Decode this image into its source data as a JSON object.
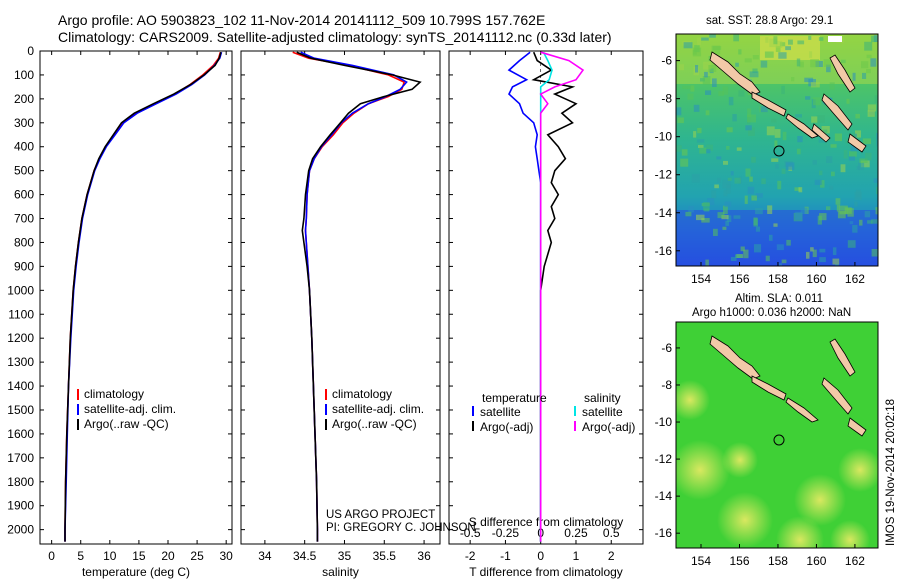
{
  "header": {
    "title_line1": "Argo profile: AO 5903823_102 11-Nov-2014 20141112_509 10.799S 157.762E",
    "title_line2": "Climatology: CARS2009. Satellite-adjusted climatology: synTS_20141112.nc (0.33d later)"
  },
  "colors": {
    "climatology": "#ff0000",
    "satellite": "#0000ff",
    "argo": "#000000",
    "sal_satellite": "#00e5e5",
    "sal_argo": "#ff00ff"
  },
  "depth_axis": {
    "ticks": [
      "0",
      "100",
      "200",
      "300",
      "400",
      "500",
      "600",
      "700",
      "800",
      "900",
      "1000",
      "1100",
      "1200",
      "1300",
      "1400",
      "1500",
      "1600",
      "1700",
      "1800",
      "1900",
      "2000"
    ],
    "max": 2060
  },
  "chart_data": [
    {
      "type": "line",
      "xlabel": "temperature (deg C)",
      "xlim": [
        -2,
        31
      ],
      "xticks": [
        "0",
        "5",
        "10",
        "15",
        "20",
        "25",
        "30"
      ],
      "legend": [
        "climatology",
        "satellite-adj. clim.",
        "Argo(..raw -QC)"
      ],
      "y_depth": [
        5,
        30,
        60,
        100,
        140,
        180,
        220,
        260,
        300,
        350,
        400,
        450,
        500,
        600,
        700,
        800,
        900,
        1000,
        1200,
        1400,
        1600,
        1800,
        2000,
        2050
      ],
      "series": [
        {
          "name": "climatology",
          "values": [
            29.0,
            28.7,
            27.8,
            26.0,
            23.8,
            21.2,
            17.8,
            14.5,
            12.3,
            10.8,
            9.3,
            8.2,
            7.3,
            6.1,
            5.2,
            4.6,
            4.1,
            3.7,
            3.2,
            2.9,
            2.6,
            2.4,
            2.3,
            2.3
          ]
        },
        {
          "name": "satellite-adj. clim.",
          "values": [
            29.2,
            28.9,
            28.0,
            26.3,
            24.1,
            21.4,
            18.0,
            14.7,
            12.4,
            10.9,
            9.4,
            8.3,
            7.4,
            6.2,
            5.3,
            4.7,
            4.2,
            3.8,
            3.3,
            2.9,
            2.7,
            2.5,
            2.3,
            2.3
          ]
        },
        {
          "name": "Argo(..raw -QC)",
          "values": [
            29.1,
            28.8,
            28.1,
            26.2,
            23.9,
            21.0,
            17.5,
            14.2,
            12.0,
            10.6,
            9.2,
            8.1,
            7.3,
            6.1,
            5.2,
            4.6,
            4.1,
            3.7,
            3.2,
            2.9,
            2.6,
            2.4,
            2.3,
            2.3
          ]
        }
      ]
    },
    {
      "type": "line",
      "xlabel": "salinity",
      "xlim": [
        33.7,
        36.2
      ],
      "xticks": [
        "34",
        "34.5",
        "35",
        "35.5",
        "36"
      ],
      "legend": [
        "climatology",
        "satellite-adj. clim.",
        "Argo(..raw -QC)"
      ],
      "y_depth": [
        5,
        30,
        60,
        100,
        130,
        160,
        190,
        220,
        260,
        300,
        350,
        400,
        450,
        500,
        600,
        700,
        750,
        800,
        900,
        1000,
        1200,
        1400,
        1600,
        1800,
        2000,
        2050
      ],
      "series": [
        {
          "name": "climatology",
          "values": [
            34.35,
            34.55,
            35.05,
            35.55,
            35.75,
            35.72,
            35.55,
            35.3,
            35.12,
            34.98,
            34.86,
            34.72,
            34.62,
            34.56,
            34.53,
            34.52,
            34.51,
            34.52,
            34.54,
            34.56,
            34.59,
            34.61,
            34.63,
            34.65,
            34.66,
            34.66
          ]
        },
        {
          "name": "satellite-adj. clim.",
          "values": [
            34.45,
            34.62,
            35.1,
            35.62,
            35.78,
            35.7,
            35.52,
            35.3,
            35.1,
            34.96,
            34.84,
            34.71,
            34.62,
            34.56,
            34.53,
            34.52,
            34.51,
            34.52,
            34.54,
            34.56,
            34.59,
            34.61,
            34.63,
            34.65,
            34.66,
            34.66
          ]
        },
        {
          "name": "Argo(..raw -QC)",
          "values": [
            34.4,
            34.58,
            35.0,
            35.6,
            35.95,
            35.85,
            35.5,
            35.2,
            35.05,
            34.95,
            34.82,
            34.7,
            34.6,
            34.55,
            34.51,
            34.49,
            34.47,
            34.49,
            34.53,
            34.56,
            34.59,
            34.61,
            34.63,
            34.65,
            34.66,
            34.66
          ]
        }
      ]
    },
    {
      "type": "line",
      "xlabel": "T difference from climatology",
      "xlabel2": "S difference from climatology",
      "xlim": [
        -2.6,
        2.9
      ],
      "xticks": [
        "-2",
        "-1",
        "0",
        "1",
        "2"
      ],
      "xticks_s": [
        "-0.5",
        "-0.25",
        "0",
        "0.25",
        "0.5"
      ],
      "legend_t_title": "temperature",
      "legend_s_title": "salinity",
      "legend_t": [
        "satellite",
        "Argo(-adj)"
      ],
      "legend_s": [
        "satellite",
        "Argo(-adj)"
      ],
      "y_depth": [
        5,
        40,
        80,
        120,
        150,
        180,
        220,
        260,
        300,
        350,
        400,
        450,
        500,
        550,
        600,
        650,
        700,
        750,
        800,
        900,
        1000,
        1200,
        1400,
        1600,
        1800,
        2000,
        2050
      ],
      "series": [
        {
          "name": "T satellite",
          "values": [
            -0.3,
            -0.6,
            -0.9,
            -0.4,
            -0.8,
            -0.9,
            -0.6,
            -0.5,
            -0.2,
            -0.1,
            -0.15,
            -0.1,
            -0.05,
            0.0,
            0.0,
            0.0,
            0.0,
            0.0,
            0.0,
            0.0,
            0.0,
            0.0,
            0.0,
            0.0,
            0.0,
            0.0,
            0.0
          ]
        },
        {
          "name": "T Argo(-adj)",
          "values": [
            -0.2,
            -0.1,
            0.3,
            -0.2,
            0.9,
            0.4,
            1.0,
            0.6,
            0.9,
            0.2,
            0.5,
            0.7,
            0.4,
            0.3,
            0.5,
            0.3,
            0.4,
            0.2,
            0.3,
            0.1,
            0.0,
            0.0,
            0.0,
            0.0,
            0.0,
            0.0,
            0.0
          ]
        },
        {
          "name": "S satellite",
          "values": [
            0.02,
            0.05,
            0.08,
            0.06,
            0.0,
            0.0,
            0.0,
            0.0,
            0.0,
            0.0,
            0.0,
            0.0,
            0.0,
            0.0,
            0.0,
            0.0,
            0.0,
            0.0,
            0.0,
            0.0,
            0.0,
            0.0,
            0.0,
            0.0,
            0.0,
            0.0,
            0.0
          ]
        },
        {
          "name": "S Argo(-adj)",
          "values": [
            0.0,
            0.2,
            0.3,
            0.25,
            0.1,
            0.0,
            0.05,
            0.0,
            0.0,
            0.0,
            0.0,
            0.0,
            0.0,
            0.0,
            0.0,
            0.0,
            0.0,
            0.0,
            0.0,
            0.0,
            0.0,
            0.0,
            0.0,
            0.0,
            0.0,
            0.0,
            0.0
          ]
        }
      ]
    },
    {
      "type": "heatmap",
      "title": "sat. SST: 28.8  Argo: 29.1",
      "xticks": [
        "154",
        "156",
        "158",
        "160",
        "162"
      ],
      "yticks": [
        "-6",
        "-8",
        "-10",
        "-12",
        "-14",
        "-16"
      ],
      "xlim": [
        152.7,
        163.2
      ],
      "ylim": [
        -16.8,
        -4.6
      ],
      "marker": {
        "lon": 157.762,
        "lat": -10.799
      }
    },
    {
      "type": "heatmap",
      "title_line1": "Altim. SLA: 0.011",
      "title_line2": "Argo h1000: 0.036 h2000: NaN",
      "xticks": [
        "154",
        "156",
        "158",
        "160",
        "162"
      ],
      "yticks": [
        "-6",
        "-8",
        "-10",
        "-12",
        "-14",
        "-16"
      ],
      "xlim": [
        152.7,
        163.2
      ],
      "ylim": [
        -16.8,
        -4.6
      ],
      "marker": {
        "lon": 157.762,
        "lat": -10.799
      }
    }
  ],
  "annotations": {
    "project_line1": "US ARGO PROJECT",
    "project_line2": "PI: GREGORY C. JOHNSON",
    "credit": "IMOS 19-Nov-2014 20:02:18"
  }
}
